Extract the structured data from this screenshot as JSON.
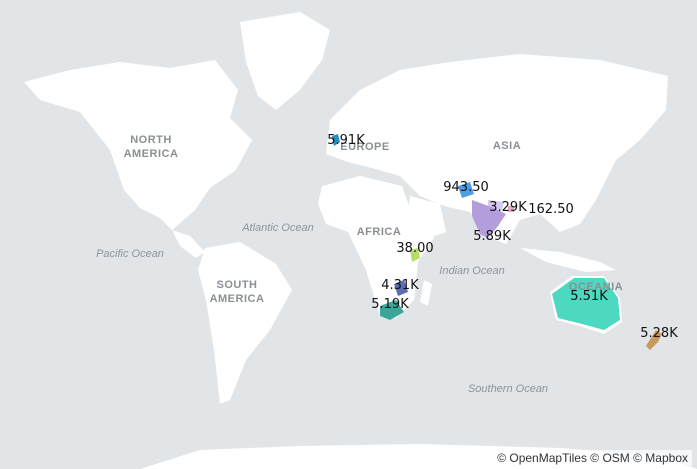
{
  "regions": [
    {
      "id": "north-america",
      "lines": [
        "NORTH",
        "AMERICA"
      ]
    },
    {
      "id": "south-america",
      "lines": [
        "SOUTH",
        "AMERICA"
      ]
    },
    {
      "id": "europe",
      "lines": [
        "EUROPE"
      ]
    },
    {
      "id": "africa",
      "lines": [
        "AFRICA"
      ]
    },
    {
      "id": "asia",
      "lines": [
        "ASIA"
      ]
    },
    {
      "id": "oceania",
      "lines": [
        "OCEANIA"
      ]
    }
  ],
  "oceans": [
    "Pacific Ocean",
    "Atlantic Ocean",
    "Indian Ocean",
    "Southern Ocean"
  ],
  "countries": [
    {
      "id": "uk",
      "label": "5.91K",
      "color": "#2b8cbe"
    },
    {
      "id": "kazakhstan-area",
      "label": "943.50",
      "color": "#4a9fe8"
    },
    {
      "id": "nepal",
      "label": "3.29K",
      "color": "#d6c8f0"
    },
    {
      "id": "bhutan",
      "label": "162.50",
      "color": "#e6a5c8"
    },
    {
      "id": "india",
      "label": "5.89K",
      "color": "#b39ddb"
    },
    {
      "id": "malawi",
      "label": "38.00",
      "color": "#b8dc6a"
    },
    {
      "id": "zambia",
      "label": "4.31K",
      "color": "#5a6fb0"
    },
    {
      "id": "south-africa",
      "label": "5.19K",
      "color": "#3aa69a"
    },
    {
      "id": "australia",
      "label": "5.51K",
      "color": "#4dd9c0"
    },
    {
      "id": "new-zealand",
      "label": "5.28K",
      "color": "#c79a5a"
    }
  ],
  "attribution": "© OpenMapTiles © OSM © Mapbox"
}
